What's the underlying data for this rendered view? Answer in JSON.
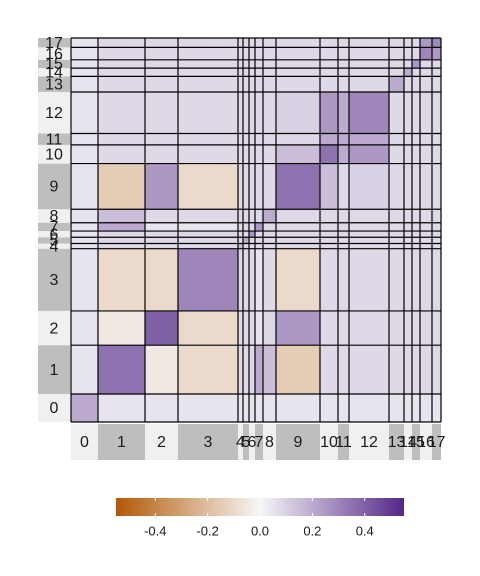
{
  "chart_data": {
    "type": "heatmap",
    "categories": [
      "0",
      "1",
      "2",
      "3",
      "4",
      "5",
      "6",
      "7",
      "8",
      "9",
      "10",
      "11",
      "12",
      "13",
      "14",
      "15",
      "16",
      "17"
    ],
    "sizes": [
      27,
      47,
      33,
      60,
      5,
      6,
      6,
      8,
      13,
      44,
      18,
      11,
      40,
      15,
      8,
      8,
      12,
      9
    ],
    "values": [
      [
        0.2,
        0.05,
        0.05,
        0.05,
        0.05,
        0.05,
        0.05,
        0.05,
        0.05,
        0.05,
        0.05,
        0.05,
        0.05,
        0.05,
        0.05,
        0.05,
        0.05,
        0.05
      ],
      [
        0.05,
        0.35,
        -0.05,
        -0.1,
        0.08,
        0.08,
        0.08,
        0.2,
        0.15,
        -0.15,
        0.08,
        0.08,
        0.08,
        0.08,
        0.08,
        0.08,
        0.08,
        0.08
      ],
      [
        0.05,
        -0.05,
        0.4,
        -0.1,
        0.08,
        0.08,
        0.08,
        0.05,
        0.08,
        0.25,
        0.08,
        0.08,
        0.08,
        0.08,
        0.08,
        0.08,
        0.08,
        0.08
      ],
      [
        0.05,
        -0.1,
        -0.1,
        0.3,
        0.08,
        0.08,
        0.08,
        0.05,
        0.08,
        -0.1,
        0.08,
        0.08,
        0.08,
        0.08,
        0.08,
        0.08,
        0.08,
        0.08
      ],
      [
        0.05,
        0.08,
        0.08,
        0.08,
        0.15,
        0.08,
        0.08,
        0.08,
        0.08,
        0.08,
        0.08,
        0.08,
        0.08,
        0.08,
        0.08,
        0.08,
        0.08,
        0.08
      ],
      [
        0.05,
        0.08,
        0.08,
        0.08,
        0.08,
        0.2,
        0.08,
        0.08,
        0.08,
        0.08,
        0.08,
        0.08,
        0.08,
        0.08,
        0.08,
        0.08,
        0.08,
        0.08
      ],
      [
        0.05,
        0.08,
        0.08,
        0.08,
        0.08,
        0.08,
        0.25,
        0.08,
        0.08,
        0.08,
        0.08,
        0.08,
        0.08,
        0.08,
        0.08,
        0.08,
        0.08,
        0.08
      ],
      [
        0.05,
        0.2,
        0.05,
        0.05,
        0.08,
        0.08,
        0.08,
        0.25,
        0.08,
        0.08,
        0.08,
        0.08,
        0.08,
        0.08,
        0.08,
        0.08,
        0.08,
        0.08
      ],
      [
        0.05,
        0.15,
        0.08,
        0.08,
        0.08,
        0.08,
        0.08,
        0.08,
        0.2,
        0.08,
        0.08,
        0.08,
        0.08,
        0.08,
        0.08,
        0.08,
        0.08,
        0.08
      ],
      [
        0.05,
        -0.15,
        0.25,
        -0.1,
        0.08,
        0.08,
        0.08,
        0.08,
        0.08,
        0.35,
        0.15,
        0.08,
        0.1,
        0.08,
        0.08,
        0.08,
        0.08,
        0.08
      ],
      [
        0.05,
        0.08,
        0.08,
        0.08,
        0.08,
        0.08,
        0.08,
        0.08,
        0.08,
        0.15,
        0.35,
        0.2,
        0.25,
        0.08,
        0.08,
        0.08,
        0.08,
        0.08
      ],
      [
        0.05,
        0.08,
        0.08,
        0.08,
        0.08,
        0.08,
        0.08,
        0.08,
        0.08,
        0.08,
        0.2,
        0.2,
        0.2,
        0.08,
        0.08,
        0.08,
        0.08,
        0.08
      ],
      [
        0.05,
        0.08,
        0.08,
        0.08,
        0.08,
        0.08,
        0.08,
        0.08,
        0.08,
        0.1,
        0.25,
        0.2,
        0.3,
        0.08,
        0.08,
        0.08,
        0.08,
        0.08
      ],
      [
        0.05,
        0.08,
        0.08,
        0.08,
        0.08,
        0.08,
        0.08,
        0.08,
        0.08,
        0.08,
        0.08,
        0.08,
        0.08,
        0.2,
        0.08,
        0.08,
        0.08,
        0.08
      ],
      [
        0.05,
        0.08,
        0.08,
        0.08,
        0.08,
        0.08,
        0.08,
        0.08,
        0.08,
        0.08,
        0.08,
        0.08,
        0.08,
        0.08,
        0.2,
        0.08,
        0.08,
        0.08
      ],
      [
        0.05,
        0.08,
        0.08,
        0.08,
        0.08,
        0.08,
        0.08,
        0.08,
        0.08,
        0.08,
        0.08,
        0.08,
        0.08,
        0.08,
        0.08,
        0.25,
        0.08,
        0.08
      ],
      [
        0.05,
        0.08,
        0.08,
        0.08,
        0.08,
        0.08,
        0.08,
        0.08,
        0.08,
        0.08,
        0.08,
        0.08,
        0.08,
        0.08,
        0.08,
        0.08,
        0.3,
        0.25
      ],
      [
        0.05,
        0.08,
        0.08,
        0.08,
        0.08,
        0.08,
        0.08,
        0.08,
        0.08,
        0.08,
        0.08,
        0.08,
        0.08,
        0.08,
        0.08,
        0.08,
        0.25,
        0.3
      ]
    ],
    "zlim": [
      -0.55,
      0.55
    ],
    "zticks": [
      -0.4,
      -0.2,
      {
        "value": 0,
        "label": "0.0"
      },
      0.2,
      0.4
    ],
    "colors": [
      "#b35806",
      "#f7f7f7",
      "#542788"
    ]
  }
}
